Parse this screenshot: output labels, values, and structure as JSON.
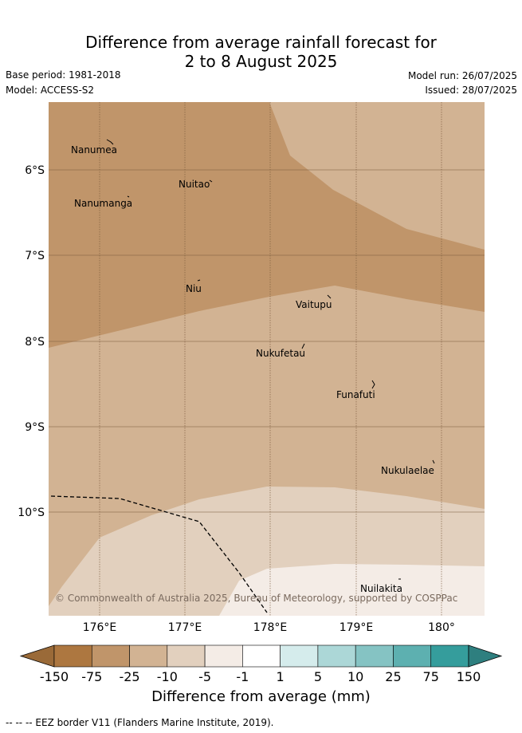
{
  "title_line1": "Difference from average rainfall forecast for",
  "title_line2": "2 to 8 August 2025",
  "base_period": "Base period: 1981-2018",
  "model": "Model: ACCESS-S2",
  "model_run": "Model run: 26/07/2025",
  "issued": "Issued: 28/07/2025",
  "copyright": "© Commonwealth of Australia 2025, Bureau of Meteorology, supported by COSPPac",
  "lat_labels": [
    "6°S",
    "7°S",
    "8°S",
    "9°S",
    "10°S"
  ],
  "lon_labels": [
    "176°E",
    "177°E",
    "178°E",
    "179°E",
    "180°"
  ],
  "places": [
    "Nanumea",
    "Nuitao",
    "Nanumanga",
    "Niu",
    "Vaitupu",
    "Nukufetau",
    "Funafuti",
    "Nukulaelae",
    "Nuilakita"
  ],
  "colorbar": {
    "labels": [
      "-150",
      "-75",
      "-25",
      "-10",
      "-5",
      "-1",
      "1",
      "5",
      "10",
      "25",
      "75",
      "150"
    ],
    "colors": [
      "#ad7740",
      "#c0956a",
      "#d2b393",
      "#e2d0be",
      "#f4ece6",
      "#ffffff",
      "#d5ecec",
      "#acd7d7",
      "#85c3c3",
      "#5db0b0",
      "#359d9c"
    ],
    "under_color": "#9a6a38",
    "over_color": "#2e7f7f",
    "title": "Difference from average (mm)"
  },
  "footnote": "-- -- -- EEZ border V11 (Flanders Marine Institute, 2019).",
  "map_fills": {
    "band_25_75": "#c0956a",
    "band_10_25": "#d2b393",
    "band_5_10": "#e2d0be",
    "band_1_5": "#f4ece6"
  }
}
